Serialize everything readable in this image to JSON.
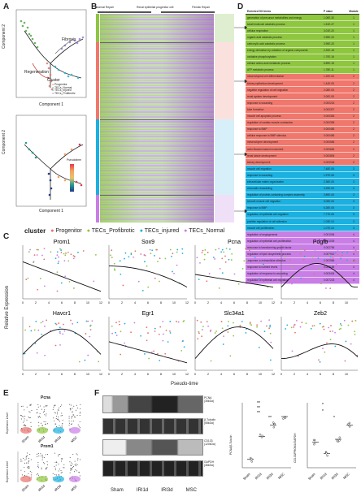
{
  "panels": {
    "A": "A",
    "B": "B",
    "C": "C",
    "D": "D",
    "E": "E",
    "F": "F"
  },
  "panelA": {
    "component1": "Component 1",
    "component2": "Component 2",
    "fibrosis": "Fibrosis",
    "regeneration": "Regeneration",
    "cluster_title": "Cluster",
    "cluster_items": [
      "Progenitor",
      "TECs_Normal",
      "TECs_Injured",
      "TECs_Profibrotic"
    ],
    "pseudotime_title": "Pseudotime",
    "colors": {
      "Progenitor": "#e07b6a",
      "TECs_Normal": "#55a84a",
      "TECs_Injured": "#2ab3c9",
      "TECs_Profibrotic": "#9b7fd1"
    }
  },
  "panelB": {
    "headers": [
      "Normal Repair",
      "Renal epithelial progenitor cell",
      "Fibrotic Repair"
    ],
    "modules": [
      "Module 1",
      "Module 2",
      "Module 3",
      "Module 4"
    ]
  },
  "panelD": {
    "col_term": "Enriched GO terms",
    "col_p": "P value",
    "col_m": "Module",
    "rows": [
      {
        "t": "generation of precursor metabolites and energy",
        "p": "1.06E-30",
        "m": "1",
        "c": "#8ec63f"
      },
      {
        "t": "small molecule catabolic process",
        "p": "1.51E-27",
        "m": "1",
        "c": "#8ec63f"
      },
      {
        "t": "cellular respiration",
        "p": "3.01E-20",
        "m": "1",
        "c": "#8ec63f"
      },
      {
        "t": "organic acid catabolic process",
        "p": "3.95E-20",
        "m": "1",
        "c": "#8ec63f"
      },
      {
        "t": "carboxylic acid catabolic process",
        "p": "3.95E-20",
        "m": "1",
        "c": "#8ec63f"
      },
      {
        "t": "energy derivation by oxidation of organic compounds",
        "p": "2.20E-18",
        "m": "1",
        "c": "#8ec63f"
      },
      {
        "t": "oxidative phosphorylation",
        "p": "1.70E-16",
        "m": "1",
        "c": "#8ec63f"
      },
      {
        "t": "cellular amino acid metabolic process",
        "p": "6.89E-15",
        "m": "1",
        "c": "#8ec63f"
      },
      {
        "t": "ATP metabolic process",
        "p": "1.78E-11",
        "m": "1",
        "c": "#8ec63f"
      },
      {
        "t": "mesenchymal cell differentiation",
        "p": "1.20E-06",
        "m": "2",
        "c": "#f0776c"
      },
      {
        "t": "kidney epithelium development",
        "p": "1.44E-05",
        "m": "2",
        "c": "#f0776c"
      },
      {
        "t": "negative regulation of cell migration",
        "p": "2.08E-05",
        "m": "2",
        "c": "#f0776c"
      },
      {
        "t": "renal system development",
        "p": "3.00E-05",
        "m": "2",
        "c": "#f0776c"
      },
      {
        "t": "response to wounding",
        "p": "0.000215",
        "m": "2",
        "c": "#f0776c"
      },
      {
        "t": "tube formation",
        "p": "0.000327",
        "m": "2",
        "c": "#f0776c"
      },
      {
        "t": "muscle cell apoptotic process",
        "p": "0.000363",
        "m": "2",
        "c": "#f0776c"
      },
      {
        "t": "regulation of cardiac muscle contraction",
        "p": "0.000395",
        "m": "2",
        "c": "#f0776c"
      },
      {
        "t": "response to BMP",
        "p": "0.000456",
        "m": "2",
        "c": "#f0776c"
      },
      {
        "t": "cellular response to BMP stimulus",
        "p": "0.000456",
        "m": "2",
        "c": "#f0776c"
      },
      {
        "t": "mesenchyme development",
        "p": "0.000556",
        "m": "2",
        "c": "#f0776c"
      },
      {
        "t": "actin filament-based movement",
        "p": "0.000684",
        "m": "2",
        "c": "#f0776c"
      },
      {
        "t": "renal tubule development",
        "p": "0.000805",
        "m": "2",
        "c": "#f0776c"
      },
      {
        "t": "kidney development",
        "p": "0.000948",
        "m": "2",
        "c": "#f0776c"
      },
      {
        "t": "muscle cell migration",
        "p": "7.48E-08",
        "m": "3",
        "c": "#1ab0e0"
      },
      {
        "t": "response to wounding",
        "p": "1.97E-06",
        "m": "3",
        "c": "#1ab0e0"
      },
      {
        "t": "extracellular matrix organization",
        "p": "2.36E-05",
        "m": "3",
        "c": "#1ab0e0"
      },
      {
        "t": "chromatin remodeling",
        "p": "3.29E-05",
        "m": "3",
        "c": "#1ab0e0"
      },
      {
        "t": "regulation of protein-containing complex assembly",
        "p": "3.89E-05",
        "m": "3",
        "c": "#1ab0e0"
      },
      {
        "t": "smooth muscle cell migration",
        "p": "5.05E-05",
        "m": "3",
        "c": "#1ab0e0"
      },
      {
        "t": "response to BMP",
        "p": "6.28E-05",
        "m": "3",
        "c": "#1ab0e0"
      },
      {
        "t": "regulation of epithelial cell migration",
        "p": "7.77E-05",
        "m": "3",
        "c": "#1ab0e0"
      },
      {
        "t": "positive regulation of cell adhesion",
        "p": "1.03E-04",
        "m": "3",
        "c": "#1ab0e0"
      },
      {
        "t": "muscle cell proliferation",
        "p": "1.07E-04",
        "m": "3",
        "c": "#1ab0e0"
      },
      {
        "t": "regulation of angiogenesis",
        "p": "0.001006",
        "m": "4",
        "c": "#c97ee6"
      },
      {
        "t": "regulation of epithelial cell proliferation",
        "p": "0.001039",
        "m": "4",
        "c": "#c97ee6"
      },
      {
        "t": "response to transforming growth factor",
        "p": "0.002756",
        "m": "4",
        "c": "#c97ee6"
      },
      {
        "t": "regulation of lipid biosynthetic process",
        "p": "0.002910",
        "m": "4",
        "c": "#c97ee6"
      },
      {
        "t": "response to extracellular stimulus",
        "p": "0.002956",
        "m": "4",
        "c": "#c97ee6"
      },
      {
        "t": "response to nutrient levels",
        "p": "0.003185",
        "m": "4",
        "c": "#c97ee6"
      },
      {
        "t": "regulation of response to wounding",
        "p": "0.003434",
        "m": "4",
        "c": "#c97ee6"
      },
      {
        "t": "regulation of epithelial cell migration",
        "p": "0.007223",
        "m": "4",
        "c": "#c97ee6"
      }
    ]
  },
  "panelC": {
    "cluster_label": "cluster",
    "legend": [
      "Progenitor",
      "TECs_Profibrotic",
      "TECs_injured",
      "TECs_Normal"
    ],
    "legend_colors": [
      "#e8706b",
      "#8ec63f",
      "#1ab0e0",
      "#c97ee6"
    ],
    "genes": [
      "Prom1",
      "Sox9",
      "Pcna",
      "Pdgfb",
      "Havcr1",
      "Egr1",
      "Slc34a1",
      "Zeb2"
    ],
    "ylabel": "Relative Expression",
    "xlabel": "Pseudo-time",
    "xticks": [
      "0",
      "2",
      "4",
      "6",
      "8",
      "10",
      "12"
    ]
  },
  "panelE": {
    "genes": [
      "Pcna",
      "Prom1"
    ],
    "ylabel": "Expression Level",
    "groups": [
      "Sham",
      "IRI1d",
      "IRI3d",
      "MSC"
    ]
  },
  "panelF": {
    "blots": [
      {
        "name": "PCNA",
        "kda": "(35kDa)"
      },
      {
        "name": "β-Tubulin",
        "kda": "(55kDa)"
      },
      {
        "name": "CD133",
        "kda": "(120kDa)"
      },
      {
        "name": "GAPDH",
        "kda": "(36kDa)"
      }
    ],
    "groups": [
      "Sham",
      "IRI1d",
      "IRI3d",
      "MSC"
    ],
    "chart1_ylabel": "PCNA/β-Tubulin",
    "chart2_ylabel": "CD133/PROM1/GAPDH",
    "sig": [
      "**",
      "**",
      "**",
      "**",
      "*",
      "*",
      "*"
    ]
  }
}
